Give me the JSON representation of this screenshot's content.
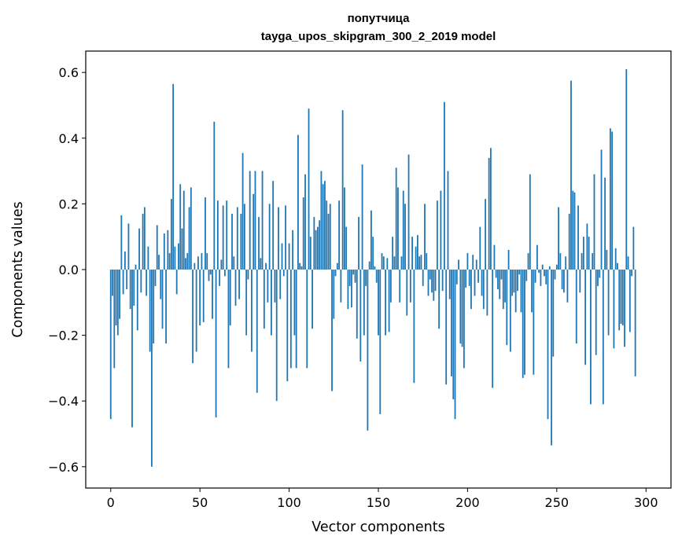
{
  "chart_data": {
    "type": "bar",
    "title": "попутчица",
    "subtitle": "tayga_upos_skipgram_300_2_2019 model",
    "xlabel": "Vector components",
    "ylabel": "Components values",
    "xlim": [
      -14,
      314
    ],
    "ylim": [
      -0.665,
      0.665
    ],
    "x_ticks": [
      0,
      50,
      100,
      150,
      200,
      250,
      300
    ],
    "x_tick_labels": [
      "0",
      "50",
      "100",
      "150",
      "200",
      "250",
      "300"
    ],
    "y_ticks": [
      -0.6,
      -0.4,
      -0.2,
      0.0,
      0.2,
      0.4,
      0.6
    ],
    "y_tick_labels": [
      "−0.6",
      "−0.4",
      "−0.2",
      "0.0",
      "0.2",
      "0.4",
      "0.6"
    ],
    "bar_color": "#1f77b4",
    "grid": false,
    "series": [
      {
        "values": [
          -0.455,
          -0.08,
          -0.3,
          -0.17,
          -0.2,
          -0.15,
          0.165,
          -0.075,
          0.055,
          -0.06,
          0.14,
          -0.12,
          -0.48,
          -0.11,
          0.015,
          -0.185,
          0.125,
          -0.07,
          0.17,
          0.19,
          -0.08,
          0.07,
          -0.25,
          -0.6,
          -0.225,
          -0.05,
          0.135,
          0.045,
          -0.09,
          -0.18,
          0.11,
          -0.225,
          0.12,
          0.05,
          0.215,
          0.565,
          0.07,
          -0.075,
          0.08,
          0.26,
          0.125,
          0.24,
          0.035,
          0.05,
          0.19,
          0.25,
          -0.285,
          0.02,
          -0.25,
          0.04,
          -0.17,
          0.05,
          -0.16,
          0.22,
          0.05,
          -0.035,
          -0.015,
          -0.15,
          0.45,
          -0.45,
          0.21,
          -0.05,
          0.03,
          0.195,
          -0.02,
          0.21,
          -0.3,
          -0.17,
          0.17,
          0.04,
          -0.11,
          0.19,
          -0.09,
          0.17,
          0.355,
          0.2,
          -0.2,
          -0.03,
          0.3,
          -0.25,
          0.23,
          0.3,
          -0.375,
          0.16,
          0.035,
          0.3,
          -0.18,
          0.02,
          -0.1,
          0.2,
          -0.2,
          0.27,
          -0.1,
          -0.4,
          0.19,
          -0.09,
          0.08,
          -0.02,
          0.195,
          -0.34,
          0.08,
          -0.3,
          0.12,
          -0.2,
          -0.3,
          0.41,
          0.02,
          0.01,
          0.22,
          0.29,
          -0.3,
          0.49,
          0.1,
          -0.18,
          0.16,
          0.12,
          0.13,
          0.15,
          0.3,
          0.26,
          0.27,
          0.21,
          0.17,
          0.2,
          -0.37,
          -0.15,
          -0.02,
          0.02,
          0.21,
          -0.1,
          0.485,
          0.25,
          0.13,
          -0.12,
          -0.05,
          -0.115,
          -0.015,
          -0.04,
          -0.21,
          0.16,
          -0.28,
          0.32,
          -0.2,
          -0.05,
          -0.49,
          0.025,
          0.18,
          0.1,
          0.01,
          -0.04,
          -0.2,
          -0.44,
          0.05,
          0.04,
          -0.2,
          0.035,
          -0.19,
          -0.1,
          0.1,
          0.04,
          0.31,
          0.25,
          -0.1,
          0.04,
          0.24,
          0.2,
          -0.14,
          0.35,
          -0.1,
          0.1,
          -0.345,
          0.07,
          0.105,
          0.04,
          0.045,
          -0.05,
          0.2,
          0.05,
          -0.08,
          -0.03,
          -0.07,
          -0.095,
          -0.065,
          0.21,
          -0.18,
          0.24,
          -0.065,
          0.51,
          -0.35,
          0.3,
          -0.09,
          -0.325,
          -0.395,
          -0.455,
          -0.045,
          0.03,
          -0.225,
          -0.235,
          -0.3,
          -0.055,
          0.05,
          -0.05,
          -0.12,
          0.045,
          -0.08,
          0.03,
          -0.04,
          0.13,
          -0.08,
          -0.12,
          0.215,
          -0.14,
          0.34,
          0.37,
          -0.36,
          0.075,
          -0.025,
          -0.06,
          -0.09,
          -0.03,
          -0.12,
          -0.1,
          -0.23,
          0.06,
          -0.25,
          -0.08,
          -0.07,
          -0.13,
          -0.065,
          -0.015,
          -0.13,
          -0.33,
          -0.32,
          -0.035,
          0.05,
          0.29,
          -0.13,
          -0.32,
          -0.04,
          0.075,
          -0.01,
          -0.05,
          0.015,
          -0.02,
          -0.045,
          -0.455,
          0.01,
          -0.535,
          -0.265,
          -0.03,
          0.015,
          0.19,
          0.05,
          -0.06,
          -0.07,
          0.04,
          -0.1,
          0.17,
          0.575,
          0.24,
          0.235,
          -0.225,
          0.195,
          -0.07,
          0.05,
          0.1,
          -0.29,
          0.14,
          0.1,
          -0.41,
          0.05,
          0.29,
          -0.26,
          -0.05,
          -0.025,
          0.365,
          -0.41,
          0.28,
          0.06,
          -0.2,
          0.43,
          0.42,
          -0.24,
          0.065,
          0.02,
          -0.185,
          -0.165,
          -0.17,
          -0.235,
          0.61,
          0.04,
          -0.19,
          -0.02,
          0.13,
          -0.325
        ]
      }
    ]
  }
}
